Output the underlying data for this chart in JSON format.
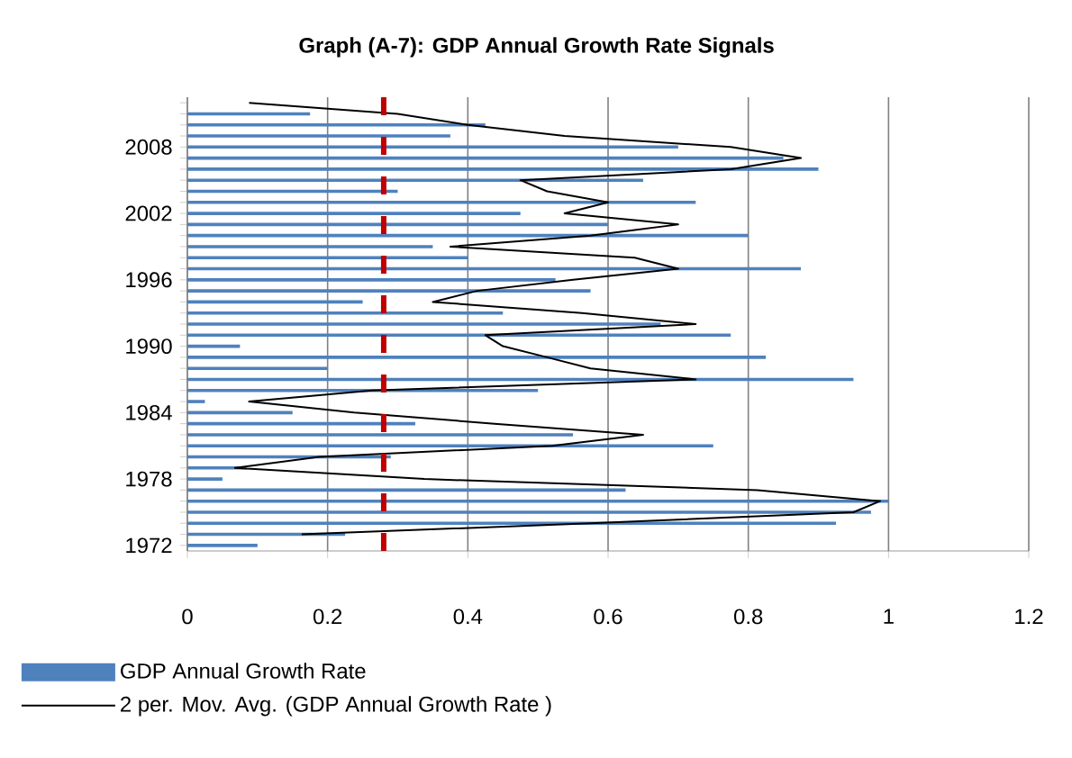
{
  "chart_data": {
    "type": "bar",
    "orientation": "horizontal",
    "title": "Graph (A-7): GDP Annual Growth Rate Signals",
    "categories": [
      null,
      null,
      null,
      null,
      "2008",
      null,
      null,
      null,
      null,
      null,
      "2002",
      null,
      null,
      null,
      null,
      null,
      "1996",
      null,
      null,
      null,
      null,
      null,
      "1990",
      null,
      null,
      null,
      null,
      null,
      "1984",
      null,
      null,
      null,
      null,
      null,
      "1978",
      null,
      null,
      null,
      null,
      null,
      "1972"
    ],
    "series": [
      {
        "name": "GDP Annual Growth Rate",
        "color": "#4f81bd",
        "values": [
          0,
          0.175,
          0.425,
          0.375,
          0.7,
          0.85,
          0.9,
          0.65,
          0.3,
          0.725,
          0.475,
          0.6,
          0.8,
          0.35,
          0.4,
          0.875,
          0.525,
          0.575,
          0.25,
          0.45,
          0.675,
          0.775,
          0.075,
          0.825,
          0.2,
          0.95,
          0.5,
          0.025,
          0.15,
          0.325,
          0.55,
          0.75,
          0.29,
          0.085,
          0.05,
          0.625,
          1.0,
          0.975,
          0.925,
          0.225,
          0.1
        ]
      },
      {
        "name": "2 per. Mov. Avg. (GDP Annual Growth Rate )",
        "type": "line",
        "color": "#000000",
        "values": [
          0.088,
          0.3,
          0.4,
          0.538,
          0.775,
          0.875,
          0.775,
          0.475,
          0.513,
          0.6,
          0.538,
          0.7,
          0.575,
          0.375,
          0.638,
          0.7,
          0.55,
          0.413,
          0.35,
          0.563,
          0.725,
          0.425,
          0.45,
          0.513,
          0.575,
          0.725,
          0.263,
          0.088,
          0.238,
          0.438,
          0.65,
          0.52,
          0.188,
          0.068,
          0.338,
          0.813,
          0.988,
          0.95,
          0.575,
          0.163,
          null
        ]
      }
    ],
    "xlim": [
      0,
      1.2
    ],
    "xticks": [
      0,
      0.2,
      0.4,
      0.6,
      0.8,
      1,
      1.2
    ],
    "ref_lines": [
      {
        "axis": "x",
        "value": 0.28,
        "color": "#c00000",
        "line_style": "dashed"
      }
    ],
    "grid": "x",
    "legend": "bottom"
  }
}
